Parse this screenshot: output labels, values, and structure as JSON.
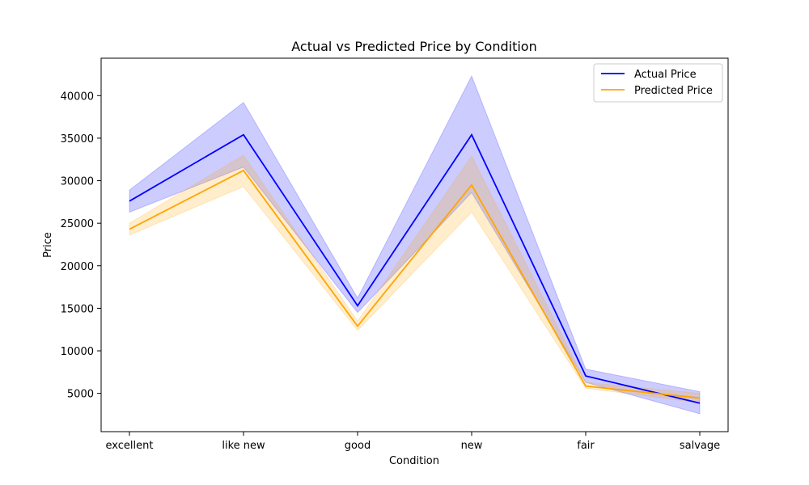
{
  "chart_data": {
    "type": "line",
    "title": "Actual vs Predicted Price by Condition",
    "xlabel": "Condition",
    "ylabel": "Price",
    "categories": [
      "excellent",
      "like new",
      "good",
      "new",
      "fair",
      "salvage"
    ],
    "ylim": [
      500,
      44400
    ],
    "yticks": [
      5000,
      10000,
      15000,
      20000,
      25000,
      30000,
      35000,
      40000
    ],
    "grid": false,
    "legend_position": "top-right",
    "series": [
      {
        "name": "Actual Price",
        "color": "#0000ff",
        "values": [
          27600,
          35400,
          15300,
          35400,
          7050,
          3850
        ],
        "ci_low": [
          26300,
          31600,
          14500,
          28600,
          6300,
          2600
        ],
        "ci_high": [
          28900,
          39200,
          16200,
          42300,
          7850,
          5200
        ]
      },
      {
        "name": "Predicted Price",
        "color": "#ffa500",
        "values": [
          24300,
          31200,
          12900,
          29500,
          5850,
          4450
        ],
        "ci_low": [
          23600,
          29300,
          12400,
          26300,
          5600,
          3900
        ],
        "ci_high": [
          25000,
          33000,
          13500,
          32900,
          6300,
          5000
        ]
      }
    ]
  }
}
